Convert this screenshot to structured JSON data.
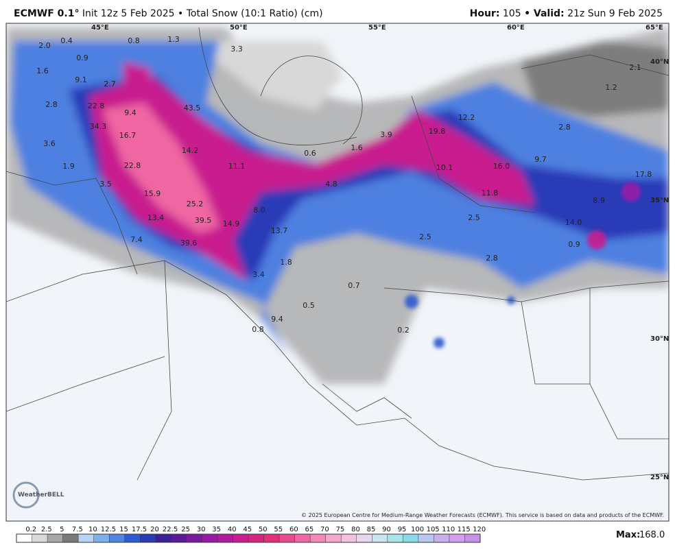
{
  "header": {
    "model": "ECMWF 0.1°",
    "init": "Init 12z 5 Feb 2025",
    "product": "• Total Snow (10:1 Ratio) (cm)",
    "hour_label": "Hour:",
    "hour": "105",
    "valid_label": "• Valid:",
    "valid": "21z Sun 9 Feb 2025"
  },
  "map": {
    "labels": [
      "2.0",
      "0.4",
      "0.8",
      "1.3",
      "3.3",
      "0.9",
      "1.6",
      "9.1",
      "2.7",
      "2.8",
      "22.8",
      "43.5",
      "9.4",
      "34.3",
      "16.7",
      "3.6",
      "14.2",
      "0.6",
      "1.6",
      "3.9",
      "12.2",
      "19.8",
      "2.8",
      "2.1",
      "1.2",
      "1.9",
      "22.8",
      "11.1",
      "10.1",
      "16.0",
      "9.7",
      "17.8",
      "3.5",
      "4.8",
      "15.9",
      "11.8",
      "8.9",
      "25.2",
      "8.0",
      "13.4",
      "39.5",
      "14.9",
      "13.7",
      "2.5",
      "14.0",
      "2.5",
      "0.9",
      "7.4",
      "39.6",
      "1.8",
      "2.8",
      "3.4",
      "0.7",
      "0.5",
      "9.4",
      "0.8",
      "0.2"
    ],
    "lon_labels": [
      "45°E",
      "50°E",
      "55°E",
      "60°E",
      "65°E"
    ],
    "lat_labels": [
      "40°N",
      "35°N",
      "30°N",
      "25°N"
    ],
    "logo": "WeatherBELL",
    "copyright": "© 2025 European Centre for Medium-Range Weather Forecasts (ECMWF). This service is based on data and products of the ECMWF."
  },
  "colorbar": {
    "ticks": [
      0.2,
      2.5,
      5,
      7.5,
      10,
      12.5,
      15,
      17.5,
      20,
      22.5,
      25,
      30,
      35,
      40,
      45,
      50,
      55,
      60,
      65,
      70,
      75,
      80,
      85,
      90,
      95,
      100,
      105,
      110,
      115,
      120
    ],
    "colors": [
      "#ffffff",
      "#d9d9d9",
      "#a8a8a8",
      "#7a7a7a",
      "#b8d4f5",
      "#7fb0ee",
      "#4f86e0",
      "#2d5bd0",
      "#2a3bb8",
      "#3a1f9a",
      "#5a1a98",
      "#7a1aa0",
      "#9a1aa8",
      "#b01b9f",
      "#c81e8f",
      "#d8267f",
      "#e2307a",
      "#ea4a8e",
      "#ef66a2",
      "#f287b8",
      "#f4a6cc",
      "#f2c2dd",
      "#e6d6ee",
      "#c8e6f0",
      "#a8e4ec",
      "#88dcea",
      "#b8c8f0",
      "#c8b0ee",
      "#d4a0ee",
      "#c890e8"
    ],
    "max_label": "Max:",
    "max": "168.0"
  }
}
